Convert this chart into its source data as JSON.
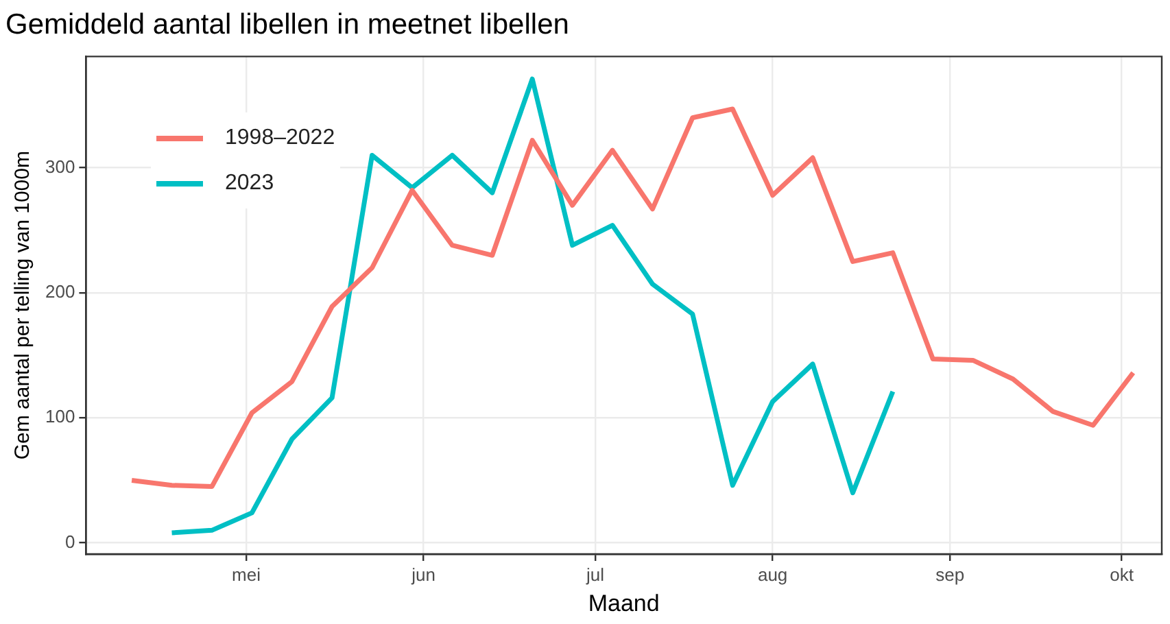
{
  "chart_data": {
    "type": "line",
    "title": "Gemiddeld aantal libellen in meetnet libellen",
    "xlabel": "Maand",
    "ylabel": "Gem aantal per telling van 1000m",
    "x": [
      "--04-11",
      "--04-18",
      "--04-25",
      "--05-02",
      "--05-09",
      "--05-16",
      "--05-23",
      "--05-30",
      "--06-06",
      "--06-13",
      "--06-20",
      "--06-27",
      "--07-04",
      "--07-11",
      "--07-18",
      "--07-25",
      "--08-01",
      "--08-08",
      "--08-15",
      "--08-22",
      "--08-29",
      "--09-05",
      "--09-12",
      "--09-19",
      "--09-26",
      "--10-03"
    ],
    "series": [
      {
        "name": "1998–2022",
        "color": "#f8766d",
        "values": [
          50,
          46,
          45,
          104,
          129,
          189,
          220,
          282,
          238,
          230,
          322,
          270,
          314,
          267,
          340,
          347,
          278,
          308,
          225,
          232,
          147,
          146,
          131,
          105,
          94,
          136
        ]
      },
      {
        "name": "2023",
        "color": "#00bfc4",
        "values": [
          null,
          8,
          10,
          24,
          83,
          116,
          310,
          284,
          310,
          280,
          371,
          238,
          254,
          207,
          183,
          46,
          113,
          143,
          40,
          121,
          null,
          null,
          null,
          null,
          null,
          null
        ]
      }
    ],
    "xlim": [
      "--04-03",
      "--10-08"
    ],
    "xticks": [
      {
        "value": "--05-01",
        "label": "mei"
      },
      {
        "value": "--06-01",
        "label": "jun"
      },
      {
        "value": "--07-01",
        "label": "jul"
      },
      {
        "value": "--08-01",
        "label": "aug"
      },
      {
        "value": "--09-01",
        "label": "sep"
      },
      {
        "value": "--10-01",
        "label": "okt"
      }
    ],
    "ylim": [
      -9,
      389
    ],
    "yticks": [
      0,
      100,
      200,
      300
    ],
    "grid": true,
    "legend": "top left",
    "marker": "none",
    "line_style": "solid"
  }
}
